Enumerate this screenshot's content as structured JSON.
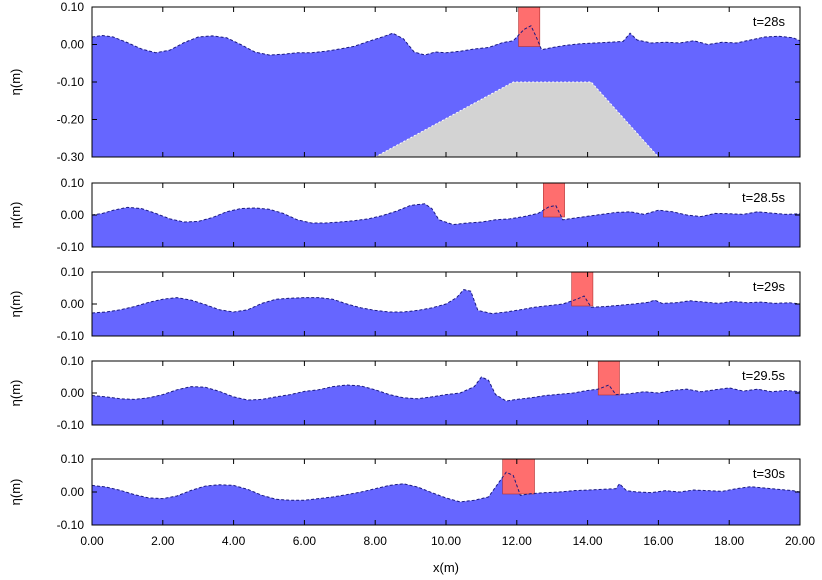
{
  "chart_data": {
    "type": "area",
    "xlabel": "x(m)",
    "ylabel": "η(m)",
    "xlim": [
      0,
      20
    ],
    "x_tick_labels": [
      "0.00",
      "2.00",
      "4.00",
      "6.00",
      "8.00",
      "10.00",
      "12.00",
      "14.00",
      "16.00",
      "18.00",
      "20.00"
    ],
    "x_ticks": [
      0,
      2,
      4,
      6,
      8,
      10,
      12,
      14,
      16,
      18,
      20
    ],
    "fill_color": "#6666ff",
    "line_color": "#1a1a80",
    "structure_color": "#d3d3d3",
    "highlight_color": "#ff6666",
    "structure": {
      "x": [
        8.0,
        11.9,
        14.1,
        16.0
      ],
      "y": [
        -0.3,
        -0.1,
        -0.1,
        -0.3
      ]
    },
    "panels": [
      {
        "time_label": "t=28s",
        "ylim": [
          -0.3,
          0.1
        ],
        "y_ticks": [
          0.1,
          0.0,
          -0.1,
          -0.2,
          -0.3
        ],
        "y_tick_labels": [
          "0.10",
          "0.00",
          "-0.10",
          "-0.20",
          "-0.30"
        ],
        "show_structure": true,
        "highlight_range": [
          12.05,
          12.65
        ],
        "x": [
          0,
          0.3,
          0.6,
          1.0,
          1.4,
          1.8,
          2.2,
          2.6,
          3.0,
          3.4,
          3.8,
          4.2,
          4.6,
          5.0,
          5.4,
          5.8,
          6.2,
          6.6,
          7.0,
          7.4,
          7.8,
          8.2,
          8.5,
          8.8,
          9.1,
          9.4,
          9.7,
          10.0,
          10.4,
          10.8,
          11.2,
          11.6,
          11.9,
          12.2,
          12.4,
          12.55,
          12.7,
          13.0,
          13.4,
          13.8,
          14.2,
          14.6,
          15.0,
          15.2,
          15.4,
          15.8,
          16.2,
          16.6,
          17.0,
          17.4,
          17.8,
          18.2,
          18.6,
          19.0,
          19.4,
          19.8,
          20.0
        ],
        "y": [
          0.02,
          0.024,
          0.02,
          0.005,
          -0.012,
          -0.022,
          -0.015,
          0.005,
          0.02,
          0.023,
          0.018,
          0.0,
          -0.02,
          -0.028,
          -0.026,
          -0.022,
          -0.022,
          -0.018,
          -0.012,
          -0.005,
          0.008,
          0.02,
          0.03,
          0.015,
          -0.02,
          -0.028,
          -0.02,
          -0.022,
          -0.018,
          -0.012,
          -0.008,
          0.005,
          0.01,
          0.04,
          0.05,
          0.02,
          -0.014,
          -0.008,
          -0.002,
          0.002,
          0.004,
          0.006,
          0.008,
          0.03,
          0.012,
          0.004,
          0.006,
          0.004,
          0.01,
          0.0,
          0.006,
          0.004,
          0.012,
          0.02,
          0.022,
          0.018,
          0.01
        ]
      },
      {
        "time_label": "t=28.5s",
        "ylim": [
          -0.1,
          0.1
        ],
        "y_ticks": [
          0.1,
          0.0,
          -0.1
        ],
        "y_tick_labels": [
          "0.10",
          "0.00",
          "-0.10"
        ],
        "show_structure": false,
        "highlight_range": [
          12.75,
          13.35
        ],
        "x": [
          0,
          0.3,
          0.6,
          1.0,
          1.4,
          1.8,
          2.2,
          2.6,
          3.0,
          3.4,
          3.8,
          4.2,
          4.6,
          5.0,
          5.4,
          5.8,
          6.2,
          6.6,
          7.0,
          7.4,
          7.8,
          8.2,
          8.6,
          9.0,
          9.4,
          9.6,
          9.8,
          10.2,
          10.6,
          11.0,
          11.4,
          11.8,
          12.2,
          12.6,
          12.9,
          13.1,
          13.3,
          13.6,
          14.0,
          14.4,
          14.8,
          15.2,
          15.6,
          16.0,
          16.4,
          16.8,
          17.2,
          17.6,
          18.0,
          18.4,
          18.8,
          19.2,
          19.6,
          20.0
        ],
        "y": [
          0.0,
          0.005,
          0.015,
          0.024,
          0.02,
          0.005,
          -0.012,
          -0.022,
          -0.02,
          -0.008,
          0.01,
          0.02,
          0.022,
          0.018,
          0.005,
          -0.015,
          -0.025,
          -0.025,
          -0.022,
          -0.018,
          -0.012,
          -0.002,
          0.012,
          0.03,
          0.035,
          0.02,
          -0.015,
          -0.03,
          -0.025,
          -0.022,
          -0.015,
          -0.012,
          -0.005,
          0.005,
          0.025,
          0.03,
          -0.015,
          -0.01,
          -0.004,
          0.002,
          0.008,
          0.01,
          0.002,
          0.015,
          0.01,
          0.0,
          -0.005,
          0.005,
          0.004,
          0.002,
          0.01,
          0.006,
          0.002,
          0.004
        ]
      },
      {
        "time_label": "t=29s",
        "ylim": [
          -0.1,
          0.1
        ],
        "y_ticks": [
          0.1,
          0.0,
          -0.1
        ],
        "y_tick_labels": [
          "0.10",
          "0.00",
          "-0.10"
        ],
        "show_structure": false,
        "highlight_range": [
          13.55,
          14.15
        ],
        "x": [
          0,
          0.4,
          0.8,
          1.2,
          1.6,
          2.0,
          2.4,
          2.8,
          3.2,
          3.6,
          4.0,
          4.4,
          4.8,
          5.2,
          5.6,
          6.0,
          6.4,
          6.8,
          7.2,
          7.6,
          8.0,
          8.4,
          8.8,
          9.2,
          9.6,
          10.0,
          10.3,
          10.5,
          10.7,
          10.9,
          11.3,
          11.7,
          12.1,
          12.5,
          12.9,
          13.3,
          13.7,
          13.9,
          14.1,
          14.5,
          14.9,
          15.3,
          15.7,
          15.9,
          16.1,
          16.5,
          16.9,
          17.3,
          17.7,
          18.1,
          18.5,
          18.9,
          19.3,
          19.7,
          20.0
        ],
        "y": [
          -0.028,
          -0.025,
          -0.018,
          -0.008,
          0.005,
          0.015,
          0.02,
          0.012,
          -0.002,
          -0.018,
          -0.025,
          -0.018,
          0.002,
          0.015,
          0.018,
          0.02,
          0.02,
          0.015,
          0.0,
          -0.012,
          -0.02,
          -0.025,
          -0.025,
          -0.02,
          -0.012,
          0.0,
          0.02,
          0.045,
          0.04,
          -0.02,
          -0.03,
          -0.025,
          -0.018,
          -0.01,
          -0.005,
          0.0,
          0.015,
          0.025,
          -0.01,
          -0.008,
          -0.004,
          0.0,
          0.005,
          0.012,
          0.002,
          0.004,
          0.01,
          0.006,
          0.002,
          0.008,
          0.004,
          0.006,
          0.002,
          0.004,
          0.0
        ]
      },
      {
        "time_label": "t=29.5s",
        "ylim": [
          -0.1,
          0.1
        ],
        "y_ticks": [
          0.1,
          0.0,
          -0.1
        ],
        "y_tick_labels": [
          "0.10",
          "0.00",
          "-0.10"
        ],
        "show_structure": false,
        "highlight_range": [
          14.3,
          14.9
        ],
        "x": [
          0,
          0.4,
          0.8,
          1.2,
          1.6,
          2.0,
          2.4,
          2.8,
          3.2,
          3.6,
          4.0,
          4.4,
          4.8,
          5.2,
          5.6,
          6.0,
          6.4,
          6.8,
          7.2,
          7.6,
          8.0,
          8.4,
          8.8,
          9.2,
          9.6,
          10.0,
          10.4,
          10.8,
          11.0,
          11.2,
          11.4,
          11.7,
          12.0,
          12.4,
          12.8,
          13.2,
          13.6,
          14.0,
          14.3,
          14.6,
          14.8,
          15.2,
          15.6,
          16.0,
          16.4,
          16.8,
          17.2,
          17.6,
          18.0,
          18.4,
          18.8,
          19.2,
          19.6,
          20.0
        ],
        "y": [
          -0.008,
          -0.012,
          -0.018,
          -0.02,
          -0.015,
          -0.005,
          0.01,
          0.02,
          0.018,
          0.005,
          -0.012,
          -0.022,
          -0.02,
          -0.012,
          -0.005,
          0.005,
          0.01,
          0.02,
          0.025,
          0.022,
          0.01,
          -0.005,
          -0.015,
          -0.018,
          -0.012,
          -0.005,
          0.0,
          0.02,
          0.05,
          0.04,
          -0.005,
          -0.025,
          -0.02,
          -0.015,
          -0.008,
          -0.004,
          0.0,
          0.008,
          0.012,
          0.025,
          -0.005,
          -0.002,
          0.004,
          0.0,
          0.008,
          0.012,
          0.004,
          0.01,
          0.016,
          0.006,
          0.012,
          0.004,
          0.008,
          0.004
        ]
      },
      {
        "time_label": "t=30s",
        "ylim": [
          -0.1,
          0.1
        ],
        "y_ticks": [
          0.1,
          0.0,
          -0.1
        ],
        "y_tick_labels": [
          "0.10",
          "0.00",
          "-0.10"
        ],
        "show_structure": false,
        "highlight_range": [
          11.6,
          12.5
        ],
        "x": [
          0,
          0.4,
          0.8,
          1.2,
          1.6,
          2.0,
          2.4,
          2.8,
          3.2,
          3.6,
          4.0,
          4.4,
          4.8,
          5.2,
          5.6,
          6.0,
          6.4,
          6.8,
          7.2,
          7.6,
          8.0,
          8.4,
          8.8,
          9.2,
          9.6,
          10.0,
          10.4,
          10.8,
          11.2,
          11.5,
          11.7,
          11.9,
          12.1,
          12.4,
          12.8,
          13.2,
          13.6,
          14.0,
          14.4,
          14.8,
          14.9,
          15.1,
          15.4,
          15.8,
          16.2,
          16.6,
          17.0,
          17.4,
          17.8,
          18.2,
          18.6,
          19.0,
          19.4,
          19.8,
          20.0
        ],
        "y": [
          0.02,
          0.015,
          0.005,
          -0.008,
          -0.018,
          -0.02,
          -0.012,
          0.005,
          0.018,
          0.022,
          0.02,
          0.008,
          -0.01,
          -0.022,
          -0.025,
          -0.025,
          -0.02,
          -0.015,
          -0.008,
          0.0,
          0.01,
          0.02,
          0.025,
          0.015,
          -0.002,
          -0.018,
          -0.03,
          -0.025,
          -0.015,
          0.03,
          0.06,
          0.05,
          -0.01,
          -0.005,
          -0.002,
          0.0,
          0.004,
          0.006,
          0.008,
          0.01,
          0.025,
          0.004,
          0.0,
          -0.002,
          0.004,
          0.0,
          0.006,
          0.004,
          0.002,
          0.01,
          0.016,
          0.012,
          0.008,
          0.004,
          0.0
        ]
      }
    ]
  }
}
